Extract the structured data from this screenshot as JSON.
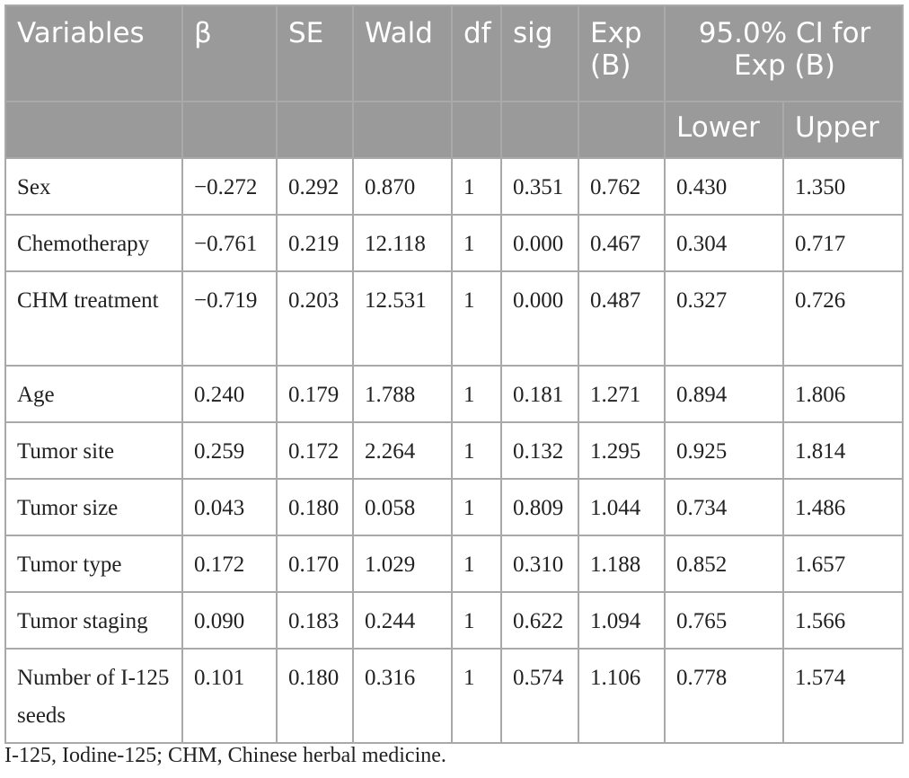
{
  "table": {
    "headers": [
      "Variables",
      "β",
      "SE",
      "Wald",
      "df",
      "sig",
      "Exp (B)",
      "95.0% CI for Exp (B)"
    ],
    "subheaders": [
      "Lower",
      "Upper"
    ],
    "rows": [
      {
        "label": "Sex",
        "cells": [
          "−0.272",
          "0.292",
          "0.870",
          "1",
          "0.351",
          "0.762",
          "0.430",
          "1.350"
        ]
      },
      {
        "label": "Chemotherapy",
        "cells": [
          "−0.761",
          "0.219",
          "12.118",
          "1",
          "0.000",
          "0.467",
          "0.304",
          "0.717"
        ]
      },
      {
        "label": "CHM treatment",
        "cells": [
          "−0.719",
          "0.203",
          "12.531",
          "1",
          "0.000",
          "0.487",
          "0.327",
          "0.726"
        ]
      },
      {
        "label": "Age",
        "cells": [
          "0.240",
          "0.179",
          "1.788",
          "1",
          "0.181",
          "1.271",
          "0.894",
          "1.806"
        ]
      },
      {
        "label": "Tumor site",
        "cells": [
          "0.259",
          "0.172",
          "2.264",
          "1",
          "0.132",
          "1.295",
          "0.925",
          "1.814"
        ]
      },
      {
        "label": "Tumor size",
        "cells": [
          "0.043",
          "0.180",
          "0.058",
          "1",
          "0.809",
          "1.044",
          "0.734",
          "1.486"
        ]
      },
      {
        "label": "Tumor type",
        "cells": [
          "0.172",
          "0.170",
          "1.029",
          "1",
          "0.310",
          "1.188",
          "0.852",
          "1.657"
        ]
      },
      {
        "label": "Tumor staging",
        "cells": [
          "0.090",
          "0.183",
          "0.244",
          "1",
          "0.622",
          "1.094",
          "0.765",
          "1.566"
        ]
      },
      {
        "label": "Number of I-125 seeds",
        "cells": [
          "0.101",
          "0.180",
          "0.316",
          "1",
          "0.574",
          "1.106",
          "0.778",
          "1.574"
        ]
      }
    ]
  },
  "footnote": "I-125, Iodine-125; CHM, Chinese herbal medicine."
}
